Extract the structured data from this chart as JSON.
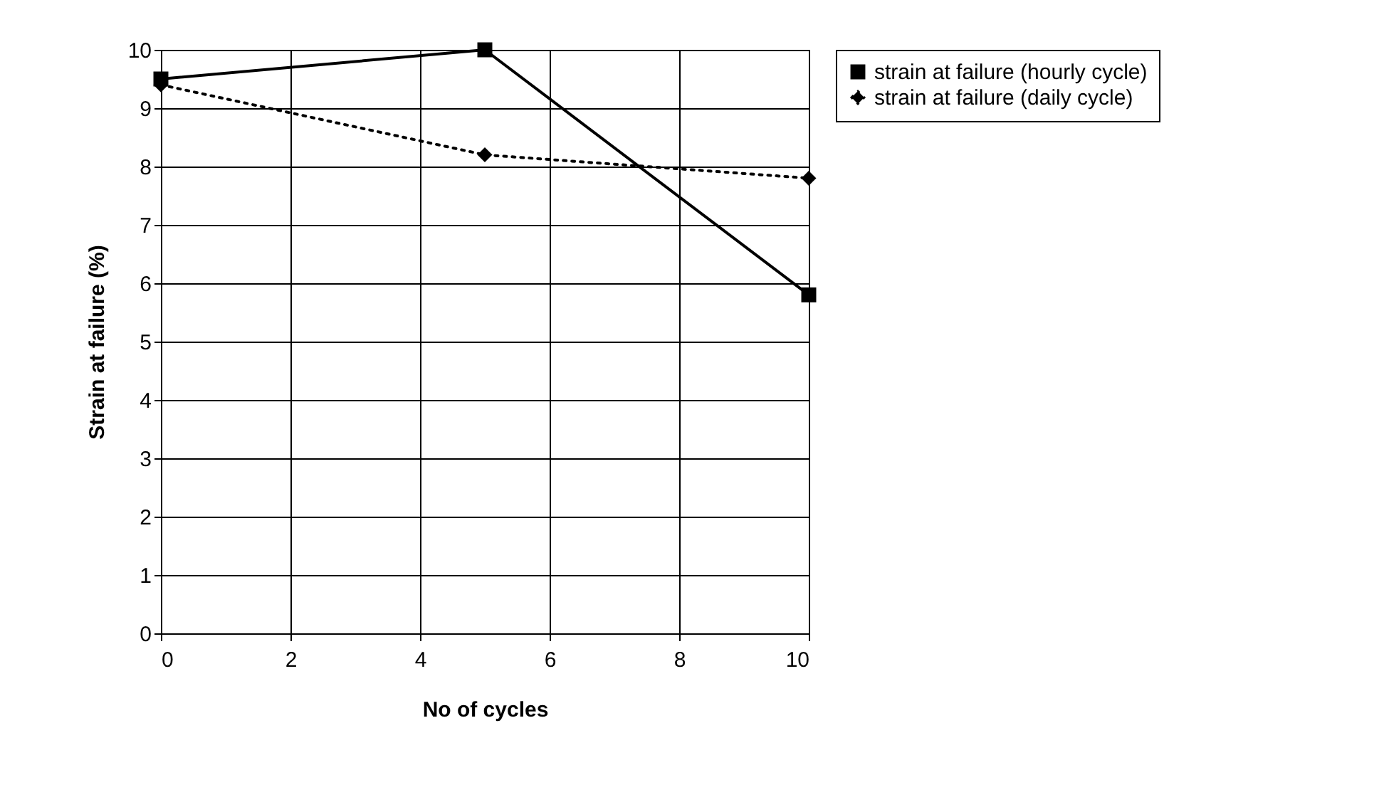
{
  "chart_data": {
    "type": "line",
    "xlabel": "No of cycles",
    "ylabel": "Strain at failure (%)",
    "x": [
      0,
      5,
      10
    ],
    "series": [
      {
        "name": "strain at failure (hourly cycle)",
        "color": "#000000",
        "marker": "square",
        "line_style": "solid",
        "values": [
          9.5,
          10,
          5.8
        ]
      },
      {
        "name": "strain at failure (daily cycle)",
        "color": "#000000",
        "marker": "diamond",
        "line_style": "dotted",
        "values": [
          9.4,
          8.2,
          7.8
        ]
      }
    ],
    "xlim": [
      0,
      10
    ],
    "xticks": [
      0,
      2,
      4,
      6,
      8,
      10
    ],
    "ylim": [
      0,
      10
    ],
    "yticks": [
      0,
      1,
      2,
      3,
      4,
      5,
      6,
      7,
      8,
      9,
      10
    ],
    "grid": true,
    "legend": "right"
  }
}
